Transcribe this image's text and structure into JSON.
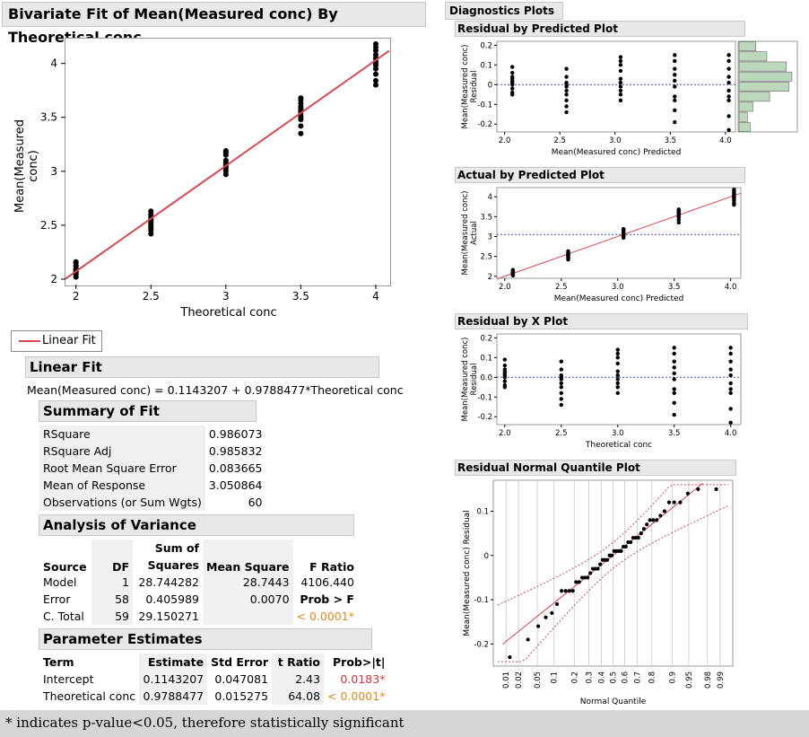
{
  "main": {
    "title": "Bivariate Fit of Mean(Measured conc) By Theoretical conc",
    "xlabel": "Theoretical conc",
    "ylabel": "Mean(Measured conc)",
    "legend": "Linear Fit"
  },
  "linear_fit": {
    "header": "Linear Fit",
    "equation": "Mean(Measured conc) = 0.1143207 + 0.9788477*Theoretical conc"
  },
  "summary": {
    "header": "Summary of Fit",
    "rows": [
      {
        "label": "RSquare",
        "value": "0.986073"
      },
      {
        "label": "RSquare Adj",
        "value": "0.985832"
      },
      {
        "label": "Root Mean Square Error",
        "value": "0.083665"
      },
      {
        "label": "Mean of Response",
        "value": "3.050864"
      },
      {
        "label": "Observations (or Sum Wgts)",
        "value": "60"
      }
    ]
  },
  "anova": {
    "header": "Analysis of Variance",
    "col_source": "Source",
    "col_df": "DF",
    "col_ss_top": "Sum of",
    "col_ss": "Squares",
    "col_ms": "Mean Square",
    "col_f": "F Ratio",
    "model": {
      "source": "Model",
      "df": "1",
      "ss": "28.744282",
      "ms": "28.7443",
      "f": "4106.440"
    },
    "error": {
      "source": "Error",
      "df": "58",
      "ss": "0.405989",
      "ms": "0.0070",
      "prob_label": "Prob > F"
    },
    "total": {
      "source": "C. Total",
      "df": "59",
      "ss": "29.150271",
      "prob": "< 0.0001*"
    }
  },
  "params": {
    "header": "Parameter Estimates",
    "col_term": "Term",
    "col_est": "Estimate",
    "col_se": "Std Error",
    "col_t": "t Ratio",
    "col_p": "Prob>|t|",
    "rows": [
      {
        "term": "Intercept",
        "est": "0.1143207",
        "se": "0.047081",
        "t": "2.43",
        "p": "0.0183*"
      },
      {
        "term": "Theoretical conc",
        "est": "0.9788477",
        "se": "0.015275",
        "t": "64.08",
        "p": "< 0.0001*"
      }
    ]
  },
  "diag": {
    "header": "Diagnostics Plots",
    "resid_pred": {
      "title": "Residual by Predicted Plot",
      "xlabel": "Mean(Measured conc) Predicted",
      "ylabel1": "Mean(Measured conc)",
      "ylabel2": "Residual"
    },
    "act_pred": {
      "title": "Actual by Predicted Plot",
      "xlabel": "Mean(Measured conc) Predicted",
      "ylabel1": "Mean(Measured conc)",
      "ylabel2": "Actual"
    },
    "resid_x": {
      "title": "Residual by X Plot",
      "xlabel": "Theoretical conc",
      "ylabel1": "Mean(Measured conc)",
      "ylabel2": "Residual"
    },
    "quantile": {
      "title": "Residual Normal Quantile Plot",
      "xlabel": "Normal Quantile",
      "ylabel": "Mean(Measured conc) Residual"
    }
  },
  "footer": "* indicates p-value<0.05, therefore statistically significant",
  "colors": {
    "fit_line": "#d84850",
    "sig": "#e0303a",
    "sig_orange": "#e08a20",
    "ref_line": "#3a4fc8",
    "hist": "#bcd7bc"
  },
  "chart_data": [
    {
      "type": "scatter",
      "title": "Bivariate Fit of Mean(Measured conc) By Theoretical conc",
      "xlabel": "Theoretical conc",
      "ylabel": "Mean(Measured conc)",
      "xlim": [
        1.93,
        4.09
      ],
      "ylim": [
        1.95,
        4.23
      ],
      "xticks": [
        "2",
        "2.5",
        "3",
        "3.5",
        "4"
      ],
      "yticks": [
        "2",
        "2.5",
        "3",
        "3.5",
        "4"
      ],
      "fit": {
        "intercept": 0.1143207,
        "slope": 0.9788477
      },
      "groups": [
        {
          "x": 2.0,
          "y": [
            2.02,
            2.04,
            2.05,
            2.06,
            2.08,
            2.09,
            2.1,
            2.12,
            2.13,
            2.15,
            2.16,
            2.07
          ]
        },
        {
          "x": 2.5,
          "y": [
            2.42,
            2.45,
            2.48,
            2.5,
            2.52,
            2.54,
            2.56,
            2.58,
            2.6,
            2.63,
            2.55,
            2.47
          ]
        },
        {
          "x": 3.0,
          "y": [
            2.97,
            3.0,
            3.02,
            3.04,
            3.06,
            3.08,
            3.1,
            3.15,
            3.17,
            3.18,
            3.19,
            3.05
          ]
        },
        {
          "x": 3.5,
          "y": [
            3.35,
            3.42,
            3.48,
            3.52,
            3.55,
            3.57,
            3.58,
            3.6,
            3.63,
            3.66,
            3.68,
            3.5
          ]
        },
        {
          "x": 4.0,
          "y": [
            3.8,
            3.84,
            3.9,
            3.95,
            4.0,
            4.02,
            4.05,
            4.08,
            4.12,
            4.15,
            4.18,
            3.98
          ]
        }
      ]
    },
    {
      "type": "scatter",
      "title": "Residual by Predicted Plot",
      "xticks": [
        "2.0",
        "2.5",
        "3.0",
        "3.5",
        "4.0"
      ],
      "yticks": [
        "0.2",
        "0.1",
        "0",
        "-0.1",
        "-0.2"
      ],
      "xlim": [
        1.93,
        4.09
      ],
      "ylim": [
        -0.24,
        0.22
      ],
      "groups": [
        {
          "x": 2.07,
          "y": [
            0.09,
            0.06,
            0.04,
            0.02,
            0.0,
            -0.02,
            -0.04,
            -0.05,
            0.01,
            0.03
          ]
        },
        {
          "x": 2.56,
          "y": [
            0.08,
            0.04,
            0.01,
            -0.01,
            -0.03,
            -0.05,
            -0.08,
            -0.11,
            -0.14,
            0.0
          ]
        },
        {
          "x": 3.05,
          "y": [
            0.14,
            0.12,
            0.1,
            0.07,
            0.03,
            0.01,
            -0.01,
            -0.03,
            -0.05,
            -0.08
          ]
        },
        {
          "x": 3.54,
          "y": [
            0.15,
            0.12,
            0.08,
            0.05,
            0.02,
            -0.01,
            -0.06,
            -0.08,
            -0.13,
            -0.19
          ]
        },
        {
          "x": 4.03,
          "y": [
            0.15,
            0.12,
            0.08,
            0.04,
            0.01,
            -0.03,
            -0.06,
            -0.08,
            -0.16,
            -0.23
          ]
        }
      ],
      "histogram_bins": [
        0.3,
        0.5,
        0.85,
        0.95,
        0.9,
        0.55,
        0.25,
        0.15,
        0.2
      ]
    },
    {
      "type": "scatter",
      "title": "Actual by Predicted Plot",
      "xticks": [
        "2.0",
        "2.5",
        "3.0",
        "3.5",
        "4.0"
      ],
      "yticks": [
        "4",
        "3.5",
        "3",
        "2.5",
        "2"
      ],
      "xlim": [
        1.93,
        4.09
      ],
      "ylim": [
        1.95,
        4.23
      ],
      "mean_line": 3.05
    },
    {
      "type": "scatter",
      "title": "Residual by X Plot",
      "xticks": [
        "2.0",
        "2.5",
        "3.0",
        "3.5",
        "4.0"
      ],
      "yticks": [
        "0.2",
        "0.1",
        "0.0",
        "-0.1",
        "-0.2"
      ],
      "xlim": [
        1.93,
        4.09
      ],
      "ylim": [
        -0.24,
        0.22
      ]
    },
    {
      "type": "scatter",
      "title": "Residual Normal Quantile Plot",
      "xlabel": "Normal Quantile",
      "ylabel": "Mean(Measured conc) Residual",
      "xticks": [
        "0.01",
        "0.02",
        "0.05",
        "0.1",
        "0.2",
        "0.3",
        "0.4",
        "0.5",
        "0.6",
        "0.7",
        "0.8",
        "0.9",
        "0.95",
        "0.98",
        "0.99"
      ],
      "yticks": [
        "0.1",
        "0",
        "-0.1",
        "-0.2"
      ],
      "xlim": [
        -2.6,
        2.6
      ],
      "ylim": [
        -0.25,
        0.17
      ]
    }
  ]
}
